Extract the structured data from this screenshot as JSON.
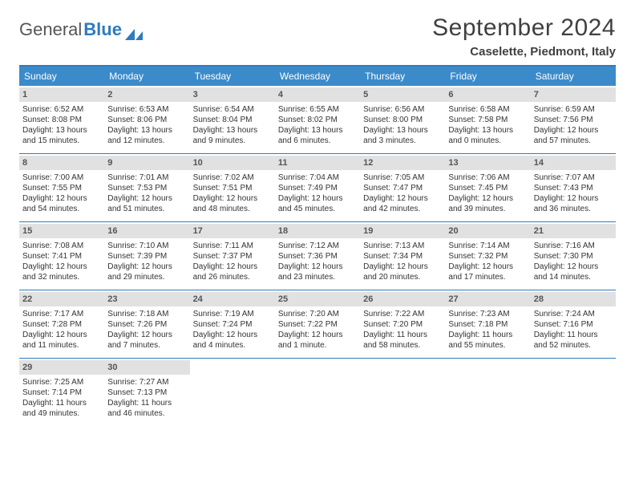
{
  "colors": {
    "accent": "#3b8bca",
    "accent_border": "#2f7ac0",
    "daynum_bg": "#e1e1e1",
    "text": "#333333",
    "bg": "#ffffff"
  },
  "logo": {
    "word1": "General",
    "word2": "Blue"
  },
  "title": "September 2024",
  "location": "Caselette, Piedmont, Italy",
  "dow": [
    "Sunday",
    "Monday",
    "Tuesday",
    "Wednesday",
    "Thursday",
    "Friday",
    "Saturday"
  ],
  "weeks": [
    [
      {
        "n": "1",
        "sr": "Sunrise: 6:52 AM",
        "ss": "Sunset: 8:08 PM",
        "d1": "Daylight: 13 hours",
        "d2": "and 15 minutes."
      },
      {
        "n": "2",
        "sr": "Sunrise: 6:53 AM",
        "ss": "Sunset: 8:06 PM",
        "d1": "Daylight: 13 hours",
        "d2": "and 12 minutes."
      },
      {
        "n": "3",
        "sr": "Sunrise: 6:54 AM",
        "ss": "Sunset: 8:04 PM",
        "d1": "Daylight: 13 hours",
        "d2": "and 9 minutes."
      },
      {
        "n": "4",
        "sr": "Sunrise: 6:55 AM",
        "ss": "Sunset: 8:02 PM",
        "d1": "Daylight: 13 hours",
        "d2": "and 6 minutes."
      },
      {
        "n": "5",
        "sr": "Sunrise: 6:56 AM",
        "ss": "Sunset: 8:00 PM",
        "d1": "Daylight: 13 hours",
        "d2": "and 3 minutes."
      },
      {
        "n": "6",
        "sr": "Sunrise: 6:58 AM",
        "ss": "Sunset: 7:58 PM",
        "d1": "Daylight: 13 hours",
        "d2": "and 0 minutes."
      },
      {
        "n": "7",
        "sr": "Sunrise: 6:59 AM",
        "ss": "Sunset: 7:56 PM",
        "d1": "Daylight: 12 hours",
        "d2": "and 57 minutes."
      }
    ],
    [
      {
        "n": "8",
        "sr": "Sunrise: 7:00 AM",
        "ss": "Sunset: 7:55 PM",
        "d1": "Daylight: 12 hours",
        "d2": "and 54 minutes."
      },
      {
        "n": "9",
        "sr": "Sunrise: 7:01 AM",
        "ss": "Sunset: 7:53 PM",
        "d1": "Daylight: 12 hours",
        "d2": "and 51 minutes."
      },
      {
        "n": "10",
        "sr": "Sunrise: 7:02 AM",
        "ss": "Sunset: 7:51 PM",
        "d1": "Daylight: 12 hours",
        "d2": "and 48 minutes."
      },
      {
        "n": "11",
        "sr": "Sunrise: 7:04 AM",
        "ss": "Sunset: 7:49 PM",
        "d1": "Daylight: 12 hours",
        "d2": "and 45 minutes."
      },
      {
        "n": "12",
        "sr": "Sunrise: 7:05 AM",
        "ss": "Sunset: 7:47 PM",
        "d1": "Daylight: 12 hours",
        "d2": "and 42 minutes."
      },
      {
        "n": "13",
        "sr": "Sunrise: 7:06 AM",
        "ss": "Sunset: 7:45 PM",
        "d1": "Daylight: 12 hours",
        "d2": "and 39 minutes."
      },
      {
        "n": "14",
        "sr": "Sunrise: 7:07 AM",
        "ss": "Sunset: 7:43 PM",
        "d1": "Daylight: 12 hours",
        "d2": "and 36 minutes."
      }
    ],
    [
      {
        "n": "15",
        "sr": "Sunrise: 7:08 AM",
        "ss": "Sunset: 7:41 PM",
        "d1": "Daylight: 12 hours",
        "d2": "and 32 minutes."
      },
      {
        "n": "16",
        "sr": "Sunrise: 7:10 AM",
        "ss": "Sunset: 7:39 PM",
        "d1": "Daylight: 12 hours",
        "d2": "and 29 minutes."
      },
      {
        "n": "17",
        "sr": "Sunrise: 7:11 AM",
        "ss": "Sunset: 7:37 PM",
        "d1": "Daylight: 12 hours",
        "d2": "and 26 minutes."
      },
      {
        "n": "18",
        "sr": "Sunrise: 7:12 AM",
        "ss": "Sunset: 7:36 PM",
        "d1": "Daylight: 12 hours",
        "d2": "and 23 minutes."
      },
      {
        "n": "19",
        "sr": "Sunrise: 7:13 AM",
        "ss": "Sunset: 7:34 PM",
        "d1": "Daylight: 12 hours",
        "d2": "and 20 minutes."
      },
      {
        "n": "20",
        "sr": "Sunrise: 7:14 AM",
        "ss": "Sunset: 7:32 PM",
        "d1": "Daylight: 12 hours",
        "d2": "and 17 minutes."
      },
      {
        "n": "21",
        "sr": "Sunrise: 7:16 AM",
        "ss": "Sunset: 7:30 PM",
        "d1": "Daylight: 12 hours",
        "d2": "and 14 minutes."
      }
    ],
    [
      {
        "n": "22",
        "sr": "Sunrise: 7:17 AM",
        "ss": "Sunset: 7:28 PM",
        "d1": "Daylight: 12 hours",
        "d2": "and 11 minutes."
      },
      {
        "n": "23",
        "sr": "Sunrise: 7:18 AM",
        "ss": "Sunset: 7:26 PM",
        "d1": "Daylight: 12 hours",
        "d2": "and 7 minutes."
      },
      {
        "n": "24",
        "sr": "Sunrise: 7:19 AM",
        "ss": "Sunset: 7:24 PM",
        "d1": "Daylight: 12 hours",
        "d2": "and 4 minutes."
      },
      {
        "n": "25",
        "sr": "Sunrise: 7:20 AM",
        "ss": "Sunset: 7:22 PM",
        "d1": "Daylight: 12 hours",
        "d2": "and 1 minute."
      },
      {
        "n": "26",
        "sr": "Sunrise: 7:22 AM",
        "ss": "Sunset: 7:20 PM",
        "d1": "Daylight: 11 hours",
        "d2": "and 58 minutes."
      },
      {
        "n": "27",
        "sr": "Sunrise: 7:23 AM",
        "ss": "Sunset: 7:18 PM",
        "d1": "Daylight: 11 hours",
        "d2": "and 55 minutes."
      },
      {
        "n": "28",
        "sr": "Sunrise: 7:24 AM",
        "ss": "Sunset: 7:16 PM",
        "d1": "Daylight: 11 hours",
        "d2": "and 52 minutes."
      }
    ],
    [
      {
        "n": "29",
        "sr": "Sunrise: 7:25 AM",
        "ss": "Sunset: 7:14 PM",
        "d1": "Daylight: 11 hours",
        "d2": "and 49 minutes."
      },
      {
        "n": "30",
        "sr": "Sunrise: 7:27 AM",
        "ss": "Sunset: 7:13 PM",
        "d1": "Daylight: 11 hours",
        "d2": "and 46 minutes."
      },
      null,
      null,
      null,
      null,
      null
    ]
  ]
}
